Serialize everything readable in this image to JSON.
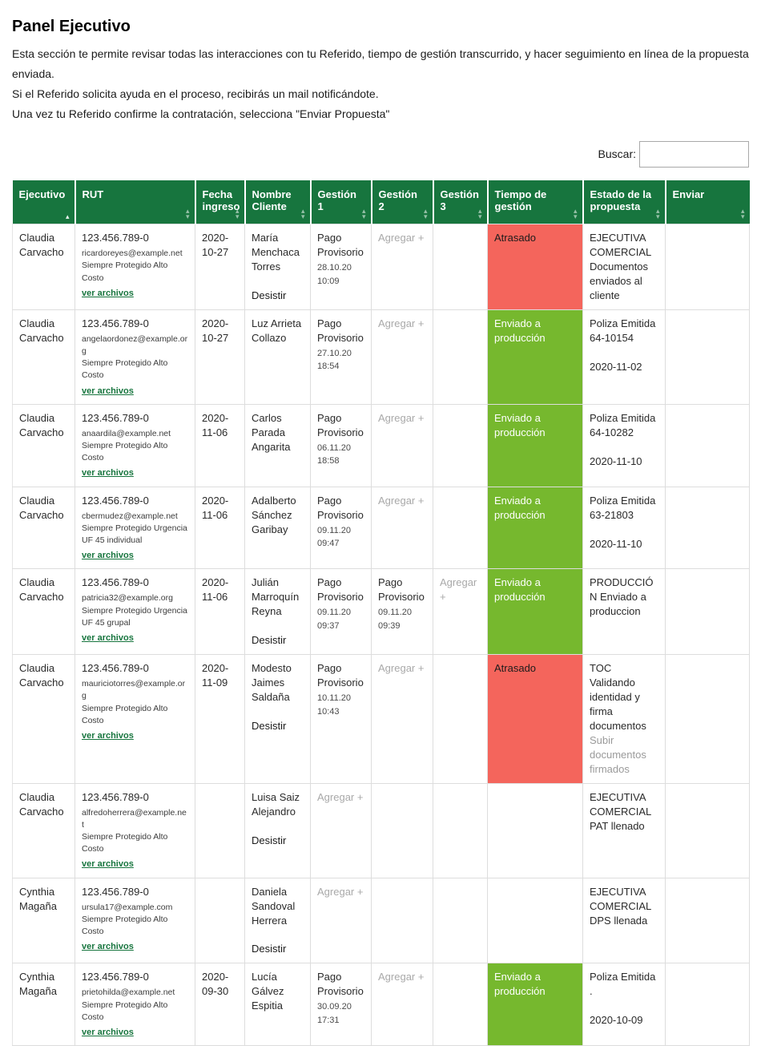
{
  "page": {
    "title": "Panel Ejecutivo",
    "description": [
      "Esta sección te permite revisar todas las interacciones con tu Referido, tiempo de gestión transcurrido, y hacer seguimiento en línea de la propuesta enviada.",
      "Si el Referido solicita ayuda en el proceso, recibirás un mail notificándote.",
      "Una vez tu Referido confirme la contratación, selecciona \"Enviar Propuesta\""
    ],
    "search_label": "Buscar:",
    "search_value": ""
  },
  "colors": {
    "header_green": "#17753e",
    "cell_green": "#76b82e",
    "cell_red": "#f4655c",
    "link_green": "#17753e"
  },
  "table": {
    "add_label": "Agregar +",
    "columns": [
      {
        "label": "Ejecutivo",
        "sort": "asc"
      },
      {
        "label": "RUT",
        "sort": "both"
      },
      {
        "label": "Fecha ingreso",
        "sort": "both"
      },
      {
        "label": "Nombre Cliente",
        "sort": "both"
      },
      {
        "label": "Gestión 1",
        "sort": "both"
      },
      {
        "label": "Gestión 2",
        "sort": "both"
      },
      {
        "label": "Gestión 3",
        "sort": "both"
      },
      {
        "label": "Tiempo de gestión",
        "sort": "both"
      },
      {
        "label": "Estado de la propuesta",
        "sort": "both"
      },
      {
        "label": "Enviar",
        "sort": "both"
      }
    ],
    "rows": [
      {
        "ejecutivo": "Claudia Carvacho",
        "rut": "123.456.789-0",
        "email": "ricardoreyes@example.net",
        "plan": "Siempre Protegido Alto Costo",
        "files_link": "ver archivos",
        "fecha": "2020-10-27",
        "cliente": "María Menchaca Torres",
        "desistir": "Desistir",
        "gestiones": [
          {
            "type": "value",
            "name": "Pago Provisorio",
            "date": "28.10.20",
            "time": "10:09"
          },
          {
            "type": "add"
          },
          {
            "type": "empty"
          }
        ],
        "tiempo": {
          "type": "late",
          "label": "Atrasado"
        },
        "estado": {
          "main": "EJECUTIVA COMERCIAL Documentos enviados al cliente"
        }
      },
      {
        "ejecutivo": "Claudia Carvacho",
        "rut": "123.456.789-0",
        "email": "angelaordonez@example.org",
        "plan": "Siempre Protegido Alto Costo",
        "files_link": "ver archivos",
        "fecha": "2020-10-27",
        "cliente": "Luz Arrieta Collazo",
        "desistir": "",
        "gestiones": [
          {
            "type": "value",
            "name": "Pago Provisorio",
            "date": "27.10.20",
            "time": "18:54"
          },
          {
            "type": "add"
          },
          {
            "type": "empty"
          }
        ],
        "tiempo": {
          "type": "production",
          "label": "Enviado a producción"
        },
        "estado": {
          "main": "Poliza Emitida 64-10154",
          "date": "2020-11-02"
        }
      },
      {
        "ejecutivo": "Claudia Carvacho",
        "rut": "123.456.789-0",
        "email": "anaardila@example.net",
        "plan": "Siempre Protegido Alto Costo",
        "files_link": "ver archivos",
        "fecha": "2020-11-06",
        "cliente": "Carlos Parada Angarita",
        "desistir": "",
        "gestiones": [
          {
            "type": "value",
            "name": "Pago Provisorio",
            "date": "06.11.20",
            "time": "18:58"
          },
          {
            "type": "add"
          },
          {
            "type": "empty"
          }
        ],
        "tiempo": {
          "type": "production",
          "label": "Enviado a producción"
        },
        "estado": {
          "main": "Poliza Emitida 64-10282",
          "date": "2020-11-10"
        }
      },
      {
        "ejecutivo": "Claudia Carvacho",
        "rut": "123.456.789-0",
        "email": "cbermudez@example.net",
        "plan": "Siempre Protegido Urgencia UF 45 individual",
        "files_link": "ver archivos",
        "fecha": "2020-11-06",
        "cliente": "Adalberto Sánchez Garibay",
        "desistir": "",
        "gestiones": [
          {
            "type": "value",
            "name": "Pago Provisorio",
            "date": "09.11.20",
            "time": "09:47"
          },
          {
            "type": "add"
          },
          {
            "type": "empty"
          }
        ],
        "tiempo": {
          "type": "production",
          "label": "Enviado a producción"
        },
        "estado": {
          "main": "Poliza Emitida 63-21803",
          "date": "2020-11-10"
        }
      },
      {
        "ejecutivo": "Claudia Carvacho",
        "rut": "123.456.789-0",
        "email": "patricia32@example.org",
        "plan": "Siempre Protegido Urgencia UF 45 grupal",
        "files_link": "ver archivos",
        "fecha": "2020-11-06",
        "cliente": "Julián Marroquín Reyna",
        "desistir": "Desistir",
        "gestiones": [
          {
            "type": "value",
            "name": "Pago Provisorio",
            "date": "09.11.20",
            "time": "09:37"
          },
          {
            "type": "value",
            "name": "Pago Provisorio",
            "date": "09.11.20",
            "time": "09:39"
          },
          {
            "type": "add"
          }
        ],
        "tiempo": {
          "type": "production",
          "label": "Enviado a producción"
        },
        "estado": {
          "main": "PRODUCCIÓN Enviado a produccion"
        }
      },
      {
        "ejecutivo": "Claudia Carvacho",
        "rut": "123.456.789-0",
        "email": "mauriciotorres@example.org",
        "plan": "Siempre Protegido Alto Costo",
        "files_link": "ver archivos",
        "fecha": "2020-11-09",
        "cliente": "Modesto Jaimes Saldaña",
        "desistir": "Desistir",
        "gestiones": [
          {
            "type": "value",
            "name": "Pago Provisorio",
            "date": "10.11.20",
            "time": "10:43"
          },
          {
            "type": "add"
          },
          {
            "type": "empty"
          }
        ],
        "tiempo": {
          "type": "late",
          "label": "Atrasado"
        },
        "estado": {
          "main": "TOC Validando identidad y firma documentos",
          "note": "Subir documentos firmados"
        }
      },
      {
        "ejecutivo": "Claudia Carvacho",
        "rut": "123.456.789-0",
        "email": "alfredoherrera@example.net",
        "plan": "Siempre Protegido Alto Costo",
        "files_link": "ver archivos",
        "fecha": "",
        "cliente": "Luisa Saiz Alejandro",
        "desistir": "Desistir",
        "gestiones": [
          {
            "type": "add"
          },
          {
            "type": "empty"
          },
          {
            "type": "empty"
          }
        ],
        "tiempo": {
          "type": "none",
          "label": ""
        },
        "estado": {
          "main": "EJECUTIVA COMERCIAL PAT llenado"
        }
      },
      {
        "ejecutivo": "Cynthia Magaña",
        "rut": "123.456.789-0",
        "email": "ursula17@example.com",
        "plan": "Siempre Protegido Alto Costo",
        "files_link": "ver archivos",
        "fecha": "",
        "cliente": "Daniela Sandoval Herrera",
        "desistir": "Desistir",
        "gestiones": [
          {
            "type": "add"
          },
          {
            "type": "empty"
          },
          {
            "type": "empty"
          }
        ],
        "tiempo": {
          "type": "none",
          "label": ""
        },
        "estado": {
          "main": "EJECUTIVA COMERCIAL DPS llenada"
        }
      },
      {
        "ejecutivo": "Cynthia Magaña",
        "rut": "123.456.789-0",
        "email": "prietohilda@example.net",
        "plan": "Siempre Protegido Alto Costo",
        "files_link": "ver archivos",
        "fecha": "2020-09-30",
        "cliente": "Lucía Gálvez Espitia",
        "desistir": "",
        "gestiones": [
          {
            "type": "value",
            "name": "Pago Provisorio",
            "date": "30.09.20",
            "time": "17:31"
          },
          {
            "type": "add"
          },
          {
            "type": "empty"
          }
        ],
        "tiempo": {
          "type": "production",
          "label": "Enviado a producción"
        },
        "estado": {
          "main": "Poliza Emitida .",
          "date": "2020-10-09"
        }
      }
    ]
  }
}
